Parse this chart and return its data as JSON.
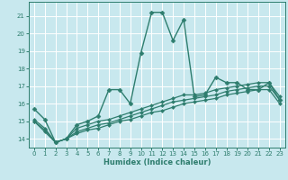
{
  "title": "",
  "xlabel": "Humidex (Indice chaleur)",
  "xlim": [
    -0.5,
    23.5
  ],
  "ylim": [
    13.5,
    21.8
  ],
  "yticks": [
    14,
    15,
    16,
    17,
    18,
    19,
    20,
    21
  ],
  "xticks": [
    0,
    1,
    2,
    3,
    4,
    5,
    6,
    7,
    8,
    9,
    10,
    11,
    12,
    13,
    14,
    15,
    16,
    17,
    18,
    19,
    20,
    21,
    22,
    23
  ],
  "bg_color": "#c8e8ee",
  "grid_color": "#ffffff",
  "line_color": "#2e7d6e",
  "lines": [
    {
      "x": [
        0,
        1,
        2,
        3,
        4,
        5,
        6,
        7,
        8,
        9,
        10,
        11,
        12,
        13,
        14,
        15,
        16,
        17,
        18,
        19,
        20,
        21,
        22,
        23
      ],
      "y": [
        15.7,
        15.1,
        13.8,
        14.0,
        14.8,
        15.0,
        15.3,
        16.8,
        16.8,
        16.0,
        18.9,
        21.2,
        21.2,
        19.6,
        20.8,
        16.4,
        16.5,
        17.5,
        17.2,
        17.2,
        16.8,
        16.8,
        17.2,
        16.2
      ],
      "marker": "D",
      "markersize": 2.5,
      "linewidth": 1.0
    },
    {
      "x": [
        0,
        1,
        2,
        3,
        4,
        5,
        6,
        7,
        8,
        9,
        10,
        11,
        12,
        13,
        14,
        15,
        16,
        17,
        18,
        19,
        20,
        21,
        22,
        23
      ],
      "y": [
        15.1,
        14.6,
        13.8,
        14.0,
        14.6,
        14.8,
        15.0,
        15.1,
        15.3,
        15.5,
        15.7,
        15.9,
        16.1,
        16.3,
        16.5,
        16.5,
        16.6,
        16.8,
        16.9,
        17.0,
        17.1,
        17.2,
        17.2,
        16.4
      ],
      "marker": "D",
      "markersize": 2,
      "linewidth": 0.9
    },
    {
      "x": [
        0,
        1,
        2,
        3,
        4,
        5,
        6,
        7,
        8,
        9,
        10,
        11,
        12,
        13,
        14,
        15,
        16,
        17,
        18,
        19,
        20,
        21,
        22,
        23
      ],
      "y": [
        15.0,
        14.5,
        13.8,
        14.0,
        14.4,
        14.6,
        14.8,
        14.9,
        15.1,
        15.3,
        15.5,
        15.7,
        15.9,
        16.1,
        16.2,
        16.3,
        16.4,
        16.5,
        16.7,
        16.8,
        16.9,
        17.0,
        17.0,
        16.2
      ],
      "marker": "D",
      "markersize": 2,
      "linewidth": 0.9
    },
    {
      "x": [
        0,
        1,
        2,
        3,
        4,
        5,
        6,
        7,
        8,
        9,
        10,
        11,
        12,
        13,
        14,
        15,
        16,
        17,
        18,
        19,
        20,
        21,
        22,
        23
      ],
      "y": [
        15.0,
        14.4,
        13.8,
        14.0,
        14.3,
        14.5,
        14.6,
        14.8,
        15.0,
        15.1,
        15.3,
        15.5,
        15.6,
        15.8,
        16.0,
        16.1,
        16.2,
        16.3,
        16.5,
        16.6,
        16.7,
        16.8,
        16.8,
        16.0
      ],
      "marker": "D",
      "markersize": 2,
      "linewidth": 0.9
    }
  ]
}
